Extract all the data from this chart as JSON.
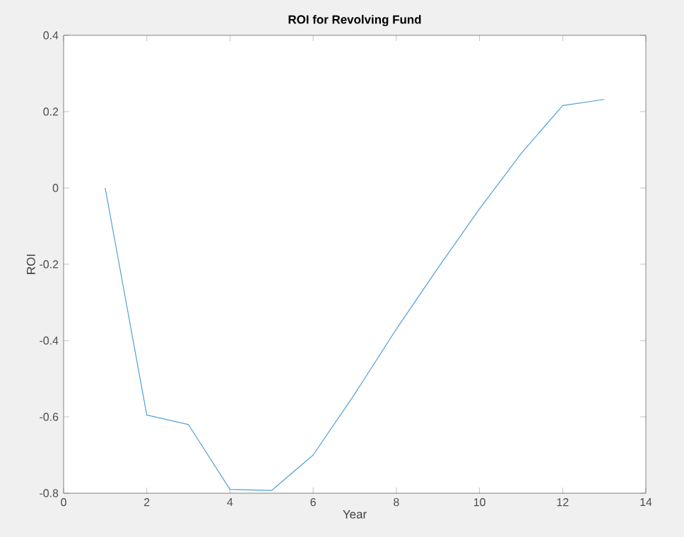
{
  "chart_data": {
    "type": "line",
    "title": "ROI for Revolving Fund",
    "xlabel": "Year",
    "ylabel": "ROI",
    "x": [
      1,
      2,
      3,
      4,
      5,
      6,
      7,
      8,
      9,
      10,
      11,
      12,
      13
    ],
    "series": [
      {
        "color": "#4f9fd6",
        "values": [
          0,
          -0.595,
          -0.62,
          -0.79,
          -0.793,
          -0.7,
          -0.54,
          -0.37,
          -0.21,
          -0.055,
          0.09,
          0.216,
          0.232
        ]
      }
    ],
    "xlim": [
      0,
      14
    ],
    "ylim": [
      -0.8,
      0.4
    ],
    "xticks": [
      0,
      2,
      4,
      6,
      8,
      10,
      12,
      14
    ],
    "yticks": [
      -0.8,
      -0.6,
      -0.4,
      -0.2,
      0,
      0.2,
      0.4
    ],
    "grid": false,
    "marker": "none",
    "line_style": "solid"
  }
}
